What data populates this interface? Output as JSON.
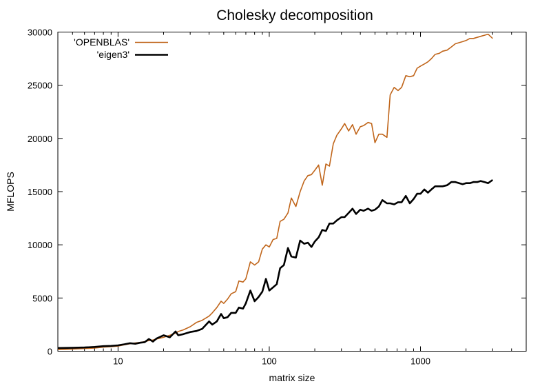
{
  "chart_data": {
    "type": "line",
    "title": "Cholesky decomposition",
    "xlabel": "matrix size",
    "ylabel": "MFLOPS",
    "x_scale": "log",
    "xlim": [
      4,
      5000
    ],
    "ylim": [
      0,
      30000
    ],
    "x_ticks": [
      {
        "value": 10,
        "label": "10"
      },
      {
        "value": 100,
        "label": "100"
      },
      {
        "value": 1000,
        "label": "1000"
      }
    ],
    "y_ticks": [
      {
        "value": 0,
        "label": "0"
      },
      {
        "value": 5000,
        "label": "5000"
      },
      {
        "value": 10000,
        "label": "10000"
      },
      {
        "value": 15000,
        "label": "15000"
      },
      {
        "value": 20000,
        "label": "20000"
      },
      {
        "value": 25000,
        "label": "25000"
      },
      {
        "value": 30000,
        "label": "30000"
      }
    ],
    "grid": false,
    "legend_position": "top-left",
    "series": [
      {
        "name": "'OPENBLAS'",
        "color": "#c0651a",
        "x": [
          4,
          5,
          6,
          7,
          8,
          9,
          10,
          11,
          12,
          13,
          14,
          15,
          16,
          17,
          18,
          20,
          22,
          24,
          25,
          27,
          30,
          33,
          36,
          40,
          42,
          45,
          48,
          50,
          53,
          56,
          60,
          63,
          67,
          70,
          75,
          80,
          85,
          90,
          95,
          100,
          106,
          112,
          118,
          125,
          133,
          140,
          150,
          160,
          170,
          180,
          190,
          200,
          212,
          224,
          237,
          250,
          265,
          280,
          300,
          315,
          335,
          355,
          375,
          400,
          420,
          450,
          475,
          500,
          530,
          560,
          600,
          630,
          670,
          710,
          750,
          800,
          850,
          900,
          950,
          1000,
          1060,
          1120,
          1180,
          1250,
          1330,
          1400,
          1500,
          1600,
          1700,
          1800,
          1900,
          2000,
          2120,
          2240,
          2370,
          2500,
          2650,
          2800,
          3000
        ],
        "values": [
          150,
          200,
          250,
          300,
          380,
          420,
          480,
          600,
          700,
          780,
          820,
          900,
          1000,
          1050,
          1150,
          1300,
          1500,
          1700,
          1850,
          2000,
          2300,
          2700,
          2900,
          3300,
          3600,
          4100,
          4700,
          4500,
          4900,
          5400,
          5600,
          6600,
          6500,
          6800,
          8400,
          8100,
          8400,
          9600,
          10000,
          9800,
          10500,
          10600,
          12200,
          12400,
          13000,
          14400,
          13600,
          15000,
          16000,
          16500,
          16600,
          17000,
          17500,
          15600,
          17600,
          17400,
          19500,
          20300,
          20900,
          21400,
          20700,
          21300,
          20400,
          21100,
          21200,
          21500,
          21400,
          19600,
          20400,
          20400,
          20100,
          24100,
          24800,
          24500,
          24800,
          25900,
          25800,
          25900,
          26600,
          26800,
          27000,
          27200,
          27500,
          27900,
          28000,
          28200,
          28300,
          28600,
          28900,
          29000,
          29100,
          29200,
          29400,
          29400,
          29500,
          29600,
          29700,
          29800,
          29400
        ]
      },
      {
        "name": "'eigen3'",
        "color": "#000000",
        "x": [
          4,
          5,
          6,
          7,
          8,
          9,
          10,
          11,
          12,
          13,
          14,
          15,
          16,
          17,
          18,
          20,
          22,
          24,
          25,
          27,
          30,
          33,
          36,
          40,
          42,
          45,
          48,
          50,
          53,
          56,
          60,
          63,
          67,
          70,
          75,
          80,
          85,
          90,
          95,
          100,
          106,
          112,
          118,
          125,
          133,
          140,
          150,
          160,
          170,
          180,
          190,
          200,
          212,
          224,
          237,
          250,
          265,
          280,
          300,
          315,
          335,
          355,
          375,
          400,
          420,
          450,
          475,
          500,
          530,
          560,
          600,
          630,
          670,
          710,
          750,
          800,
          850,
          900,
          950,
          1000,
          1060,
          1120,
          1180,
          1250,
          1330,
          1400,
          1500,
          1600,
          1700,
          1800,
          1900,
          2000,
          2120,
          2240,
          2370,
          2500,
          2650,
          2800,
          3000
        ],
        "values": [
          300,
          320,
          350,
          400,
          470,
          500,
          550,
          650,
          750,
          700,
          800,
          850,
          1150,
          900,
          1200,
          1500,
          1300,
          1850,
          1500,
          1600,
          1800,
          1900,
          2100,
          2800,
          2500,
          2800,
          3500,
          3100,
          3200,
          3600,
          3600,
          4100,
          4000,
          4500,
          5700,
          4700,
          5100,
          5600,
          6800,
          5700,
          6000,
          6300,
          7800,
          8100,
          9700,
          8900,
          8800,
          10400,
          10100,
          10200,
          9800,
          10300,
          10700,
          11400,
          11300,
          12000,
          12000,
          12300,
          12600,
          12600,
          13000,
          13400,
          12900,
          13300,
          13200,
          13400,
          13200,
          13300,
          13600,
          14200,
          13900,
          13900,
          13800,
          14000,
          14000,
          14600,
          13900,
          14300,
          14800,
          14800,
          15200,
          14900,
          15200,
          15500,
          15500,
          15500,
          15600,
          15900,
          15900,
          15800,
          15700,
          15800,
          15800,
          15900,
          15900,
          16000,
          15900,
          15800,
          16100
        ]
      }
    ]
  }
}
